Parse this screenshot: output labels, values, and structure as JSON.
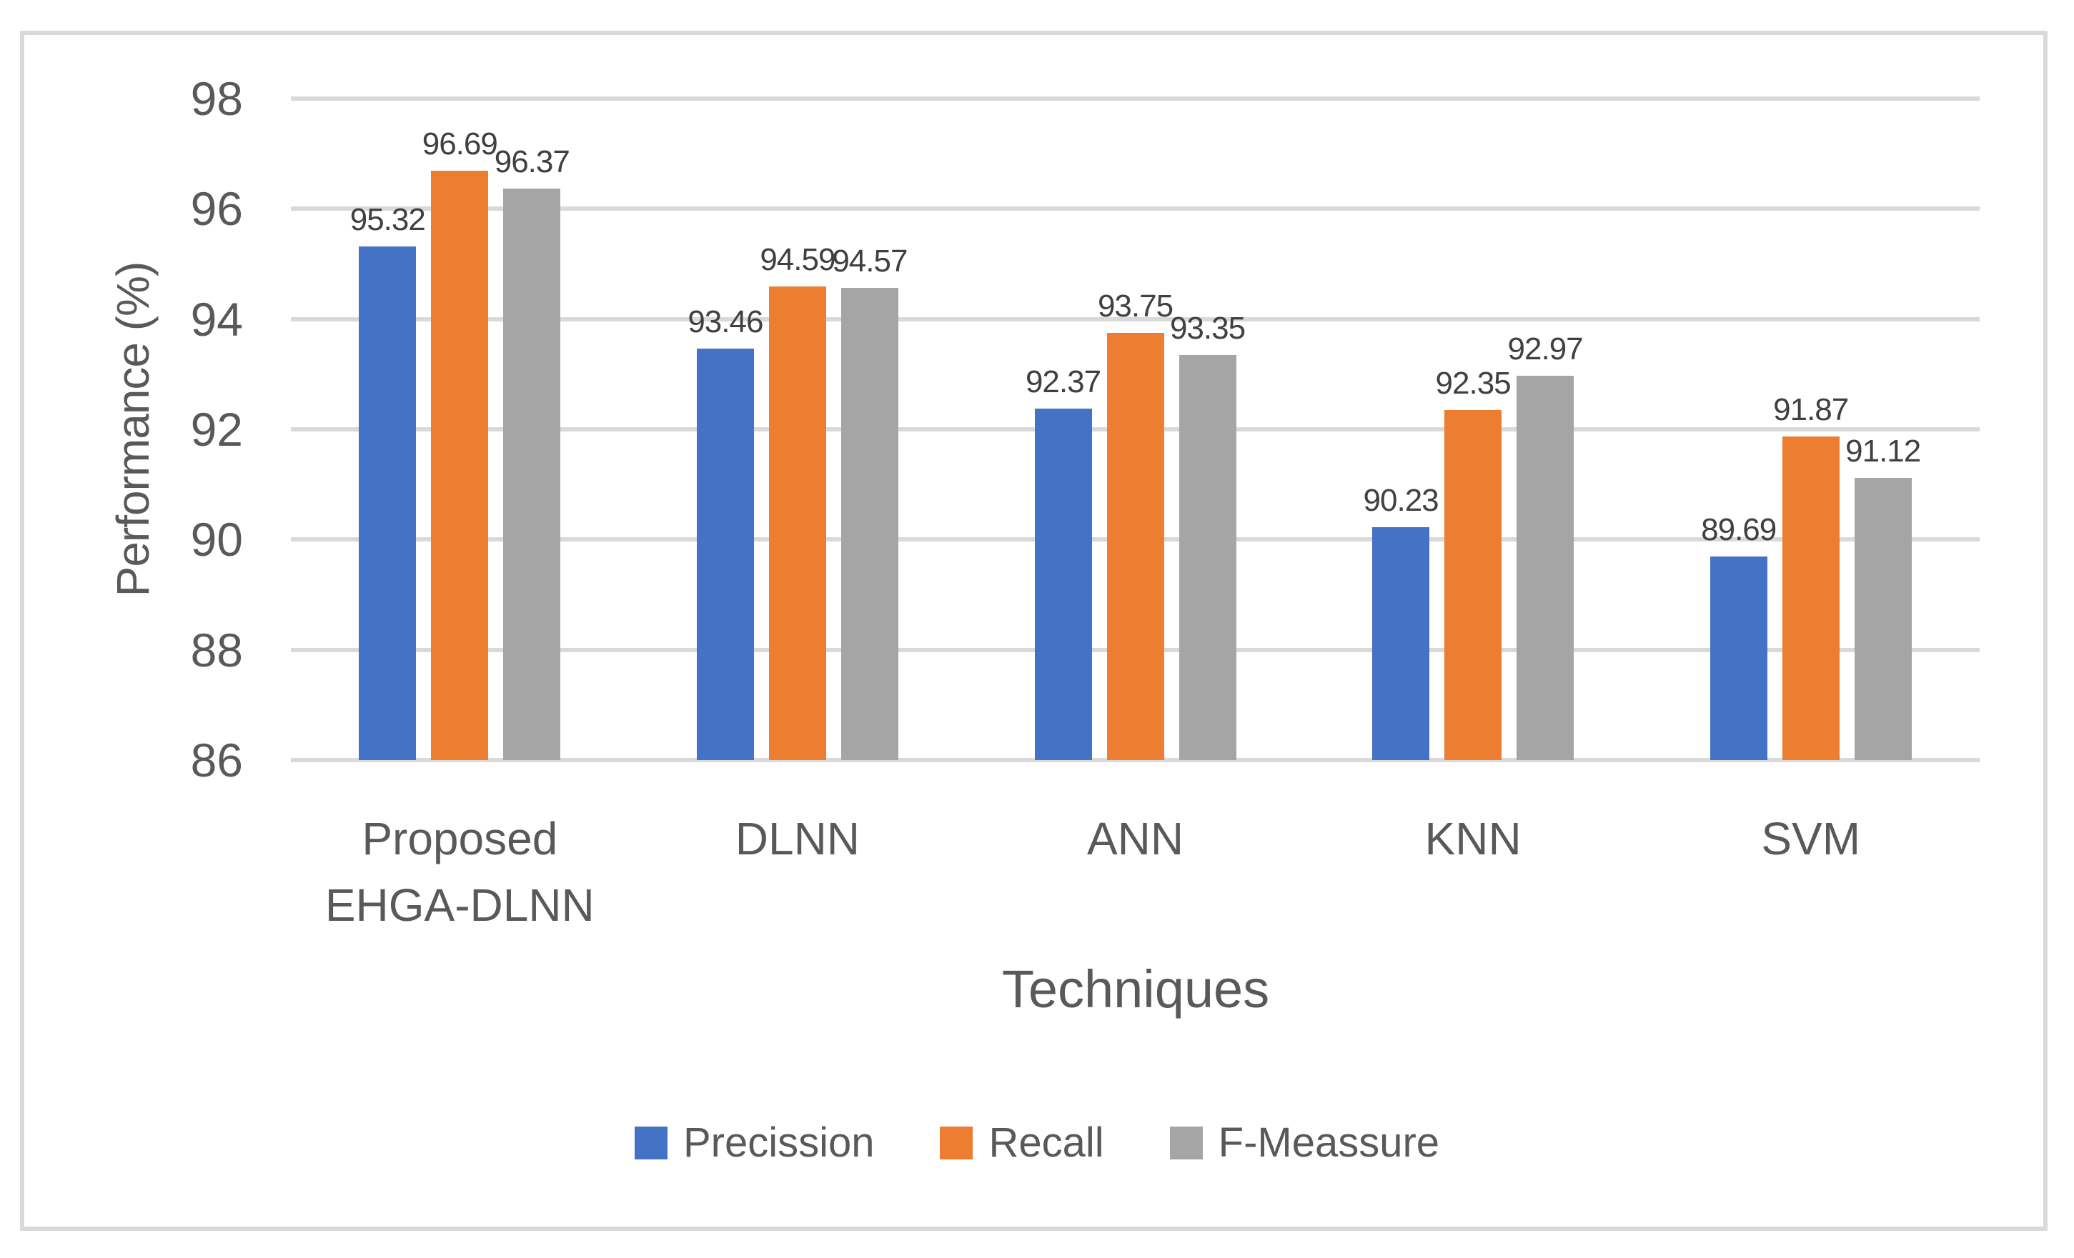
{
  "figure": {
    "background": "#FFFFFF",
    "border_color": "#D9D9D9"
  },
  "chart_data": {
    "type": "bar",
    "title": "",
    "categories": [
      "Proposed EHGA-DLNN",
      "DLNN",
      "ANN",
      "KNN",
      "SVM"
    ],
    "series": [
      {
        "name": "Precission",
        "color": "#4472C4",
        "values": [
          95.32,
          93.46,
          92.37,
          90.23,
          89.69
        ]
      },
      {
        "name": "Recall",
        "color": "#ED7D31",
        "values": [
          96.69,
          94.59,
          93.75,
          92.35,
          91.87
        ]
      },
      {
        "name": "F-Meassure",
        "color": "#A5A5A5",
        "values": [
          96.37,
          94.57,
          93.35,
          92.97,
          91.12
        ]
      }
    ],
    "data_labels": [
      [
        "95.32",
        "93.46",
        "92.37",
        "90.23",
        "89.69"
      ],
      [
        "96.69",
        "94.59",
        "93.75",
        "92.35",
        "91.87"
      ],
      [
        "96.37",
        "94.57",
        "93.35",
        "92.97",
        "91.12"
      ]
    ],
    "xlabel": "Techniques",
    "ylabel": "Performance (%)",
    "ylim": [
      86,
      98
    ],
    "yticks": [
      "86",
      "88",
      "90",
      "92",
      "94",
      "96",
      "98"
    ],
    "grid": true,
    "gridline_color": "#D9D9D9",
    "legend_position": "bottom",
    "legend_entries": [
      "Precission",
      "Recall",
      "F-Meassure"
    ],
    "tick_text_color": "#595959",
    "data_label_color": "#404040"
  }
}
